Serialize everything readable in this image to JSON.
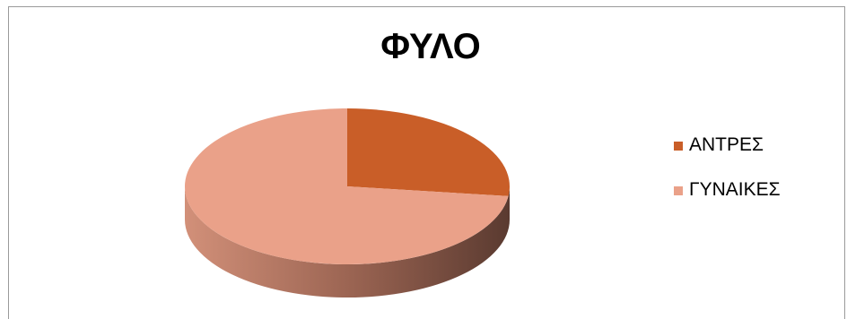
{
  "chart_data": {
    "type": "pie",
    "title": "ΦΥΛΟ",
    "categories": [
      "ΑΝΤΡΕΣ",
      "ΓΥΝΑΙΚΕΣ"
    ],
    "values": [
      27,
      73
    ],
    "colors": [
      "#c95e28",
      "#eaa189"
    ],
    "legend_position": "right",
    "three_d": true
  }
}
